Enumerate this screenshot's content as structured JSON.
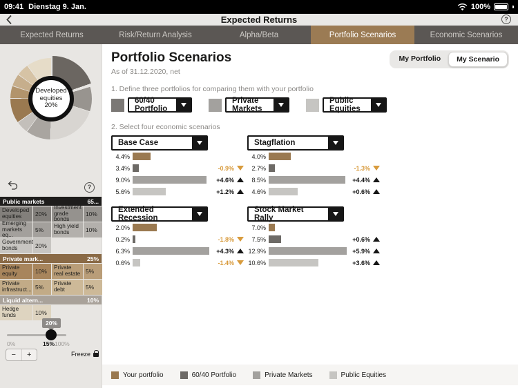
{
  "status_bar": {
    "time": "09:41",
    "date": "Dienstag 9. Jan.",
    "battery": "100%"
  },
  "title_bar": {
    "title": "Expected Returns",
    "help_icon": "?"
  },
  "tabs": [
    {
      "label": "Expected Returns",
      "active": false
    },
    {
      "label": "Risk/Return Analysis",
      "active": false
    },
    {
      "label": "Alpha/Beta",
      "active": false
    },
    {
      "label": "Portfolio Scenarios",
      "active": true
    },
    {
      "label": "Economic Scenarios",
      "active": false
    }
  ],
  "sidebar": {
    "donut": {
      "center_label": "Developed equities",
      "center_value": "20%",
      "segments": [
        {
          "label": "Developed equities",
          "pct": 20,
          "color": "#6b6661"
        },
        {
          "label": "Investment grade bonds",
          "pct": 10,
          "color": "#98948f"
        },
        {
          "label": "Government bonds",
          "pct": 20,
          "color": "#d8d5d1"
        },
        {
          "label": "High yield bonds",
          "pct": 10,
          "color": "#a9a5a0"
        },
        {
          "label": "Emerging markets eq.",
          "pct": 5,
          "color": "#c3bfba"
        },
        {
          "label": "Private equity",
          "pct": 10,
          "color": "#9a7950"
        },
        {
          "label": "Private real estate",
          "pct": 5,
          "color": "#b2946c"
        },
        {
          "label": "Private infrastructure",
          "pct": 5,
          "color": "#c6ae8c"
        },
        {
          "label": "Private debt",
          "pct": 5,
          "color": "#d6c3a5"
        },
        {
          "label": "Hedge funds",
          "pct": 10,
          "color": "#e6dcc8"
        }
      ]
    },
    "table": {
      "groups": [
        {
          "header": "Public markets",
          "header_value": "65...",
          "header_bg": "#1e1d1c",
          "rows": [
            [
              {
                "label": "Developed equities",
                "value": "20%",
                "bg": "#827f7b"
              },
              {
                "label": "Investment grade bonds",
                "value": "10%",
                "bg": "#95928e"
              }
            ],
            [
              {
                "label": "Emerging markets eq...",
                "value": "5%",
                "bg": "#a3a09c"
              },
              {
                "label": "High yield bonds",
                "value": "10%",
                "bg": "#b3b0ac"
              }
            ],
            [
              {
                "label": "Government bonds",
                "value": "20%",
                "bg": "#c7c5c1"
              }
            ]
          ]
        },
        {
          "header": "Private mark...",
          "header_value": "25%",
          "header_bg": "#8a6a46",
          "rows": [
            [
              {
                "label": "Private equity",
                "value": "10%",
                "bg": "#a8855c"
              },
              {
                "label": "Private real estate",
                "value": "5%",
                "bg": "#b99d78"
              }
            ],
            [
              {
                "label": "Private infrastruct...",
                "value": "5%",
                "bg": "#c2ab87"
              },
              {
                "label": "Private debt",
                "value": "5%",
                "bg": "#cdb998"
              }
            ]
          ]
        },
        {
          "header": "Liquid altern...",
          "header_value": "10%",
          "header_bg": "#a9a29a",
          "rows": [
            [
              {
                "label": "Hedge funds",
                "value": "10%",
                "bg": "#ded4c0"
              }
            ]
          ]
        }
      ]
    },
    "slider": {
      "tooltip": "20%",
      "min_label": "0%",
      "current_label": "15%",
      "max_label": "100%",
      "minus": "−",
      "plus": "+",
      "freeze_label": "Freeze"
    }
  },
  "main": {
    "title": "Portfolio Scenarios",
    "subtitle": "As of 31.12.2020, net",
    "toggle": {
      "options": [
        "My Portfolio",
        "My Scenario"
      ],
      "selected": "My Scenario"
    },
    "step1": "1. Define three portfolios for comparing them with your portfolio",
    "step2": "2. Select four economic scenarios",
    "portfolios": [
      {
        "label": "60/40 Portfolio",
        "color": "#7b7875"
      },
      {
        "label": "Private Markets",
        "color": "#a3a19e"
      },
      {
        "label": "Public Equities",
        "color": "#c6c5c2"
      }
    ],
    "series_colors": [
      "#9a7950",
      "#6d6a66",
      "#a3a19e",
      "#c6c5c2"
    ],
    "panels": [
      {
        "scenario": "Base Case",
        "rows": [
          {
            "label": "4.4%",
            "v": 4.4,
            "delta": null
          },
          {
            "label": "3.4%",
            "v": 3.4,
            "delta": {
              "text": "-0.9%",
              "dir": "down"
            }
          },
          {
            "label": "9.0%",
            "v": 9.0,
            "delta": {
              "text": "+4.6%",
              "dir": "up"
            }
          },
          {
            "label": "5.6%",
            "v": 5.6,
            "delta": {
              "text": "+1.2%",
              "dir": "up"
            }
          }
        ]
      },
      {
        "scenario": "Stagflation",
        "rows": [
          {
            "label": "4.0%",
            "v": 4.0,
            "delta": null
          },
          {
            "label": "2.7%",
            "v": 2.7,
            "delta": {
              "text": "-1.3%",
              "dir": "down"
            }
          },
          {
            "label": "8.5%",
            "v": 8.5,
            "delta": {
              "text": "+4.4%",
              "dir": "up"
            }
          },
          {
            "label": "4.6%",
            "v": 4.6,
            "delta": {
              "text": "+0.6%",
              "dir": "up"
            }
          }
        ]
      },
      {
        "scenario": "Extended Recession",
        "rows": [
          {
            "label": "2.0%",
            "v": 2.0,
            "delta": null
          },
          {
            "label": "0.2%",
            "v": 0.2,
            "delta": {
              "text": "-1.8%",
              "dir": "down"
            }
          },
          {
            "label": "6.3%",
            "v": 6.3,
            "delta": {
              "text": "+4.3%",
              "dir": "up"
            }
          },
          {
            "label": "0.6%",
            "v": 0.6,
            "delta": {
              "text": "-1.4%",
              "dir": "down"
            }
          }
        ]
      },
      {
        "scenario": "Stock Market Rally",
        "rows": [
          {
            "label": "7.0%",
            "v": 7.0,
            "delta": null
          },
          {
            "label": "7.5%",
            "v": 7.5,
            "delta": {
              "text": "+0.6%",
              "dir": "up"
            }
          },
          {
            "label": "12.9%",
            "v": 12.9,
            "delta": {
              "text": "+5.9%",
              "dir": "up"
            }
          },
          {
            "label": "10.6%",
            "v": 10.6,
            "delta": {
              "text": "+3.6%",
              "dir": "up"
            }
          }
        ]
      }
    ],
    "legend": [
      {
        "label": "Your portfolio",
        "color": "#9a7950"
      },
      {
        "label": "60/40 Portfolio",
        "color": "#6d6a66"
      },
      {
        "label": "Private Markets",
        "color": "#a3a19e"
      },
      {
        "label": "Public Equities",
        "color": "#c6c5c2"
      }
    ]
  }
}
